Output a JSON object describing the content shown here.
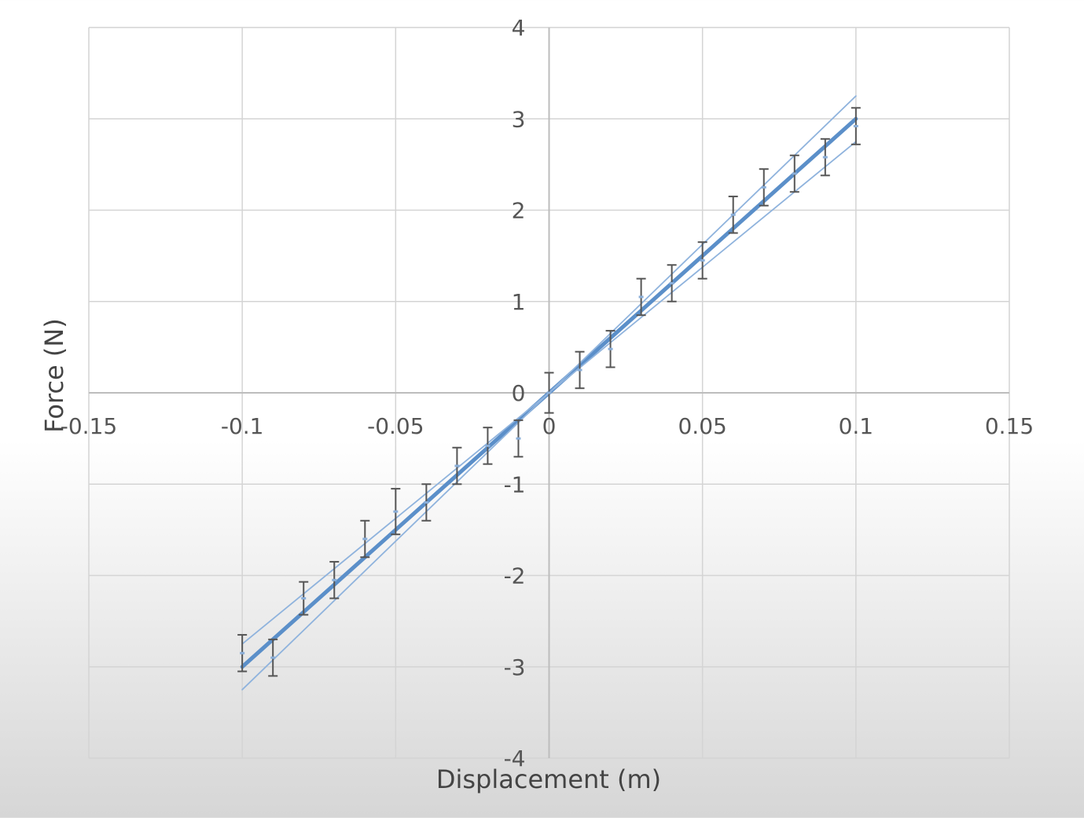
{
  "chart_data": {
    "type": "scatter",
    "title": "",
    "xlabel": "Displacement (m)",
    "ylabel": "Force (N)",
    "xlim": [
      -0.15,
      0.15
    ],
    "ylim": [
      -4,
      4
    ],
    "x_ticks": [
      -0.15,
      -0.1,
      -0.05,
      0,
      0.05,
      0.1,
      0.15
    ],
    "x_tick_labels": [
      "-0.15",
      "-0.1",
      "-0.05",
      "0",
      "0.05",
      "0.1",
      "0.15"
    ],
    "y_ticks": [
      -4,
      -3,
      -2,
      -1,
      0,
      1,
      2,
      3,
      4
    ],
    "y_tick_labels": [
      "-4",
      "-3",
      "-2",
      "-1",
      "0",
      "1",
      "2",
      "3",
      "4"
    ],
    "grid": true,
    "legend": "none",
    "series": [
      {
        "x": [
          -0.1,
          -0.09,
          -0.08,
          -0.07,
          -0.06,
          -0.05,
          -0.04,
          -0.03,
          -0.02,
          -0.01,
          0,
          0.01,
          0.02,
          0.03,
          0.04,
          0.05,
          0.06,
          0.07,
          0.08,
          0.09,
          0.1
        ],
        "y": [
          -2.85,
          -2.9,
          -2.25,
          -2.05,
          -1.6,
          -1.3,
          -1.2,
          -0.8,
          -0.58,
          -0.5,
          0.0,
          0.25,
          0.48,
          1.05,
          1.2,
          1.45,
          1.95,
          2.25,
          2.4,
          2.58,
          2.92
        ],
        "error": [
          0.2,
          0.2,
          0.18,
          0.2,
          0.2,
          0.25,
          0.2,
          0.2,
          0.2,
          0.2,
          0.22,
          0.2,
          0.2,
          0.2,
          0.2,
          0.2,
          0.2,
          0.2,
          0.2,
          0.2,
          0.2
        ]
      }
    ],
    "fit_lines": [
      {
        "kind": "best-fit",
        "slope": 30,
        "intercept": 0
      },
      {
        "kind": "max-slope",
        "slope": 32.5,
        "intercept": 0
      },
      {
        "kind": "min-slope",
        "slope": 27.5,
        "intercept": 0
      }
    ],
    "colors": {
      "fit": "#5b8fc9",
      "bound": "#8fb3dd",
      "error_bar": "#555555",
      "marker": "#8aaed8",
      "grid": "#d4d4d4"
    }
  }
}
